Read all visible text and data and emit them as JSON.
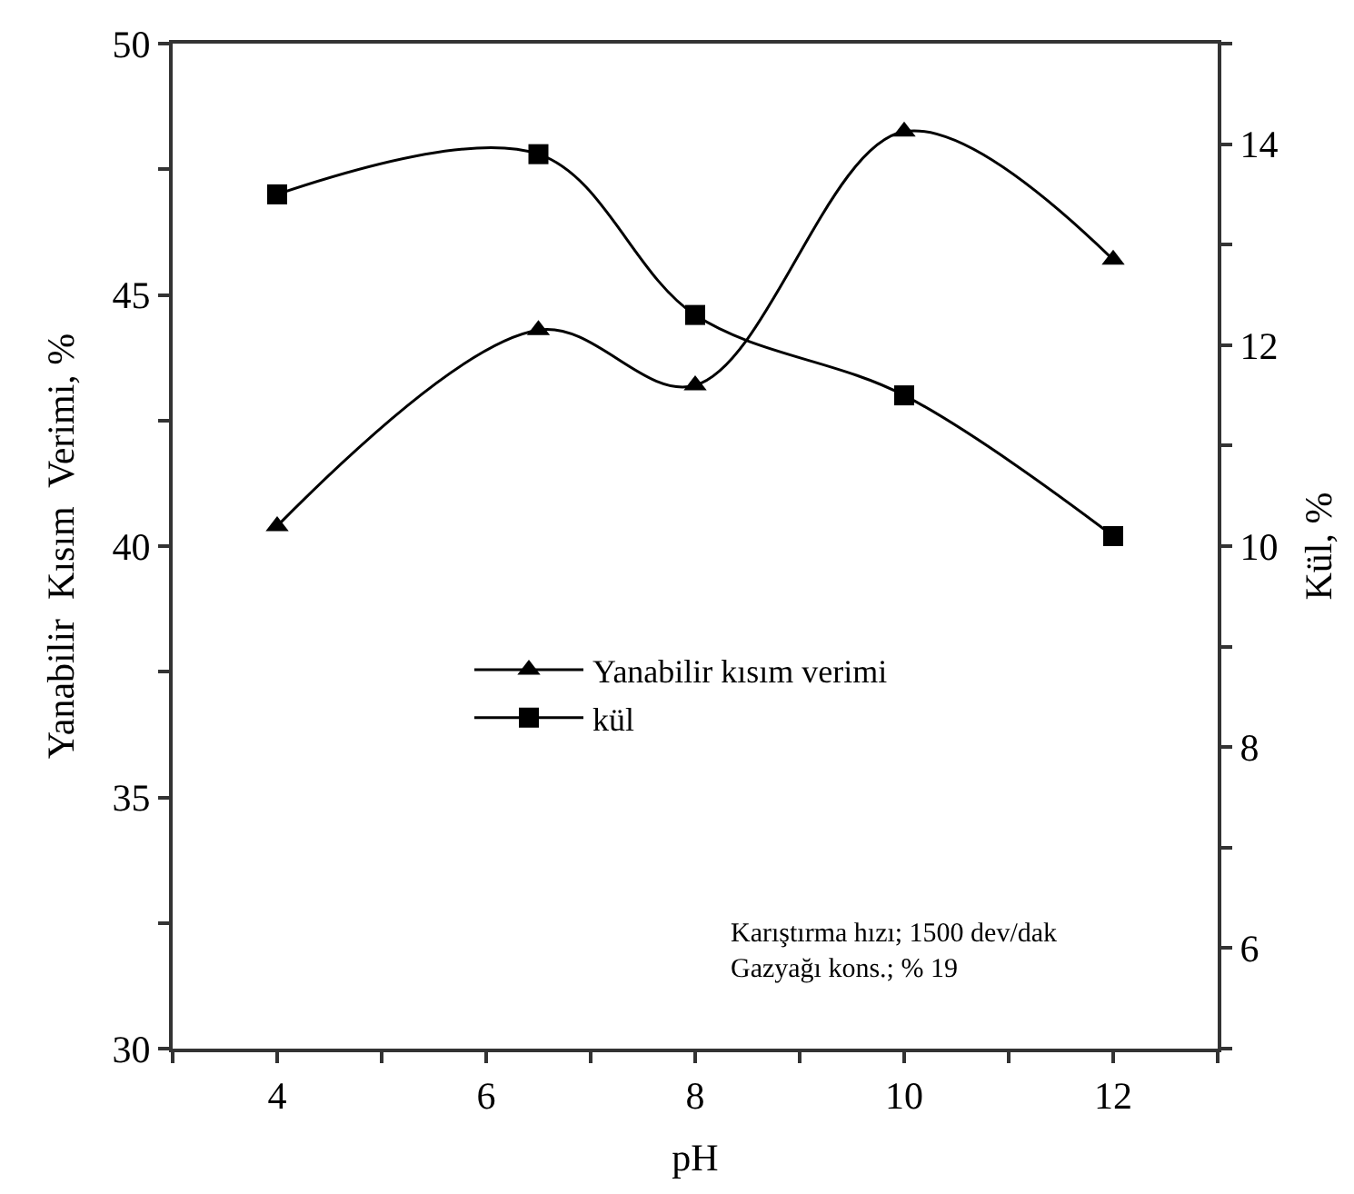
{
  "chart_data": {
    "type": "line",
    "xlabel": "pH",
    "ylabel": "Yanabilir  Kısım  Verimi, %",
    "y2label": "Kül, %",
    "x": [
      4,
      6.5,
      8,
      10,
      12
    ],
    "series": [
      {
        "name": "Yanabilir kısım verimi",
        "color": "#000000",
        "marker": "triangle",
        "values": [
          40.4,
          44.3,
          43.2,
          48.25,
          45.7
        ]
      },
      {
        "name": "kül",
        "color": "#000000",
        "marker": "square",
        "axis": "y2",
        "values": [
          13.5,
          13.9,
          12.3,
          11.5,
          10.1
        ]
      }
    ],
    "xlim": [
      3,
      13
    ],
    "xticks": [
      {
        "value": 3,
        "label": null
      },
      4,
      {
        "value": 5,
        "label": null
      },
      6,
      {
        "value": 7,
        "label": null
      },
      8,
      {
        "value": 9,
        "label": null
      },
      10,
      {
        "value": 11,
        "label": null
      },
      12,
      {
        "value": 13,
        "label": null
      }
    ],
    "ylim": [
      30,
      50
    ],
    "yticks": [
      30,
      {
        "value": 32.5,
        "label": null
      },
      35,
      {
        "value": 37.5,
        "label": null
      },
      40,
      {
        "value": 42.5,
        "label": null
      },
      45,
      {
        "value": 47.5,
        "label": null
      },
      50
    ],
    "y2lim": [
      5,
      15
    ],
    "y2ticks": [
      {
        "value": 5,
        "label": null
      },
      6,
      {
        "value": 7,
        "label": null
      },
      8,
      {
        "value": 9,
        "label": null
      },
      10,
      {
        "value": 11,
        "label": null
      },
      12,
      {
        "value": 13,
        "label": null
      },
      14,
      {
        "value": 15,
        "label": null
      }
    ],
    "annotations": [
      "Karıştırma hızı; 1500 dev/dak\nGazyağı kons.; % 19"
    ],
    "legend": "center left",
    "line_style": "solid"
  }
}
